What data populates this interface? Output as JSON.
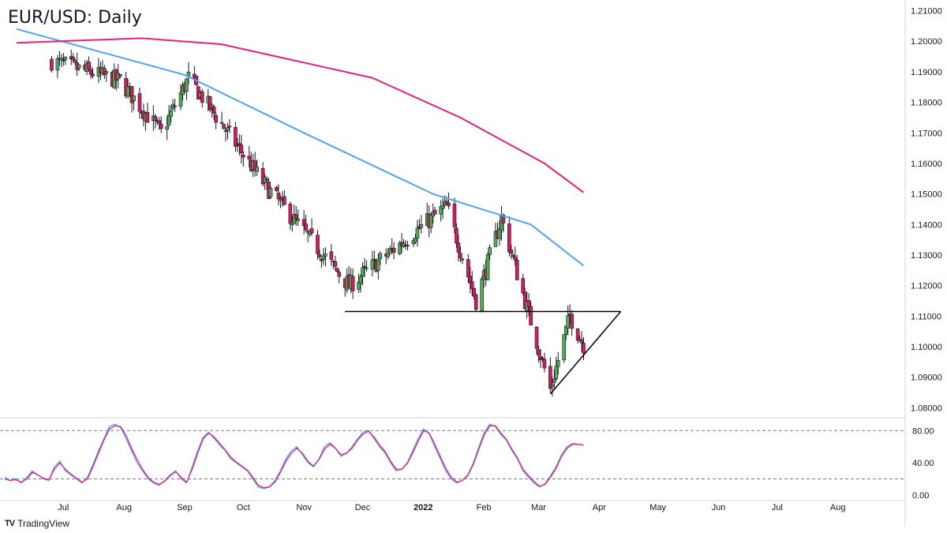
{
  "title": "EUR/USD: Daily",
  "brand": "TradingView",
  "colors": {
    "up": "#4caf50",
    "down": "#d81b60",
    "ma_fast": "#4fa3f7",
    "ma_slow": "#e91e7b",
    "stoch_k": "#4fa3f7",
    "stoch_d": "#e91e7b",
    "pattern": "#000000"
  },
  "chart_data": [
    {
      "type": "candlestick",
      "title": "EUR/USD: Daily",
      "price_axis": {
        "ticks": [
          "1.21000",
          "1.20000",
          "1.19000",
          "1.18000",
          "1.17000",
          "1.16000",
          "1.15000",
          "1.14000",
          "1.13000",
          "1.12000",
          "1.11000",
          "1.10000",
          "1.09000",
          "1.08000"
        ],
        "range": [
          1.077,
          1.2135
        ]
      },
      "time_axis": {
        "labels": [
          "Jul",
          "Aug",
          "Sep",
          "Oct",
          "Nov",
          "Dec",
          "2022",
          "Feb",
          "Mar",
          "Apr",
          "May",
          "Jun",
          "Jul",
          "Aug"
        ],
        "bold_label": "2022"
      },
      "key_points": [
        {
          "date": "2021-06-25",
          "close": 1.1935
        },
        {
          "date": "2021-07-30",
          "close": 1.187
        },
        {
          "date": "2021-08-20",
          "close": 1.17
        },
        {
          "date": "2021-09-03",
          "close": 1.188
        },
        {
          "date": "2021-10-12",
          "close": 1.153
        },
        {
          "date": "2021-11-24",
          "close": 1.12
        },
        {
          "date": "2022-01-13",
          "close": 1.146
        },
        {
          "date": "2022-01-28",
          "close": 1.115
        },
        {
          "date": "2022-02-10",
          "close": 1.142
        },
        {
          "date": "2022-03-07",
          "close": 1.086
        },
        {
          "date": "2022-03-17",
          "close": 1.11
        },
        {
          "date": "2022-03-24",
          "close": 1.1005
        }
      ],
      "moving_averages": [
        {
          "name": "fast",
          "points": [
            [
              1.204,
              "2021-06-07"
            ],
            [
              1.189,
              "2021-09-01"
            ],
            [
              1.17,
              "2021-11-01"
            ],
            [
              1.15,
              "2022-01-06"
            ],
            [
              1.14,
              "2022-02-25"
            ],
            [
              1.1265,
              "2022-03-24"
            ]
          ]
        },
        {
          "name": "slow",
          "points": [
            [
              1.1995,
              "2021-06-07"
            ],
            [
              1.201,
              "2021-08-10"
            ],
            [
              1.199,
              "2021-09-20"
            ],
            [
              1.188,
              "2021-12-06"
            ],
            [
              1.175,
              "2022-01-20"
            ],
            [
              1.16,
              "2022-03-04"
            ],
            [
              1.1505,
              "2022-03-24"
            ]
          ]
        }
      ],
      "annotations": [
        {
          "kind": "horizontal-line",
          "price": 1.1115,
          "from": "2021-11-22",
          "to": "2022-04-12"
        },
        {
          "kind": "ascending-trendline",
          "from": {
            "date": "2022-03-07",
            "price": 1.0845
          },
          "to": {
            "date": "2022-04-12",
            "price": 1.1115
          }
        }
      ]
    },
    {
      "type": "line",
      "title": "",
      "y_axis": {
        "ticks": [
          "80.00",
          "40.00",
          "0.00"
        ],
        "range": [
          -5,
          95
        ]
      },
      "levels": [
        80,
        20
      ],
      "series": [
        {
          "key": "k",
          "values": [
            22,
            18,
            20,
            15,
            22,
            30,
            25,
            20,
            18,
            35,
            42,
            30,
            25,
            20,
            15,
            22,
            38,
            55,
            70,
            85,
            88,
            84,
            70,
            55,
            40,
            30,
            20,
            15,
            12,
            18,
            25,
            30,
            20,
            15,
            35,
            55,
            72,
            78,
            70,
            62,
            55,
            45,
            40,
            35,
            30,
            20,
            10,
            8,
            10,
            18,
            30,
            45,
            55,
            60,
            50,
            40,
            35,
            45,
            60,
            65,
            58,
            48,
            52,
            60,
            70,
            78,
            80,
            70,
            60,
            52,
            40,
            30,
            32,
            40,
            55,
            70,
            82,
            76,
            60,
            45,
            30,
            20,
            15,
            18,
            25,
            40,
            60,
            78,
            88,
            85,
            75,
            68,
            55,
            45,
            30,
            22,
            15,
            10,
            14,
            24,
            35,
            50,
            60,
            64,
            63,
            62
          ]
        },
        {
          "key": "d",
          "values": [
            20,
            18,
            19,
            16,
            20,
            28,
            25,
            21,
            19,
            32,
            40,
            32,
            26,
            21,
            16,
            20,
            35,
            52,
            68,
            82,
            86,
            85,
            74,
            58,
            44,
            32,
            22,
            16,
            13,
            17,
            24,
            29,
            22,
            16,
            32,
            52,
            70,
            77,
            72,
            64,
            56,
            47,
            41,
            36,
            31,
            22,
            12,
            9,
            10,
            16,
            28,
            42,
            52,
            58,
            52,
            42,
            36,
            44,
            57,
            63,
            58,
            50,
            52,
            58,
            68,
            76,
            79,
            72,
            62,
            54,
            42,
            32,
            32,
            39,
            52,
            67,
            80,
            77,
            63,
            48,
            33,
            22,
            16,
            18,
            24,
            38,
            57,
            75,
            86,
            86,
            77,
            69,
            57,
            46,
            32,
            24,
            17,
            11,
            13,
            22,
            33,
            48,
            58,
            63,
            63,
            62
          ]
        }
      ]
    }
  ]
}
